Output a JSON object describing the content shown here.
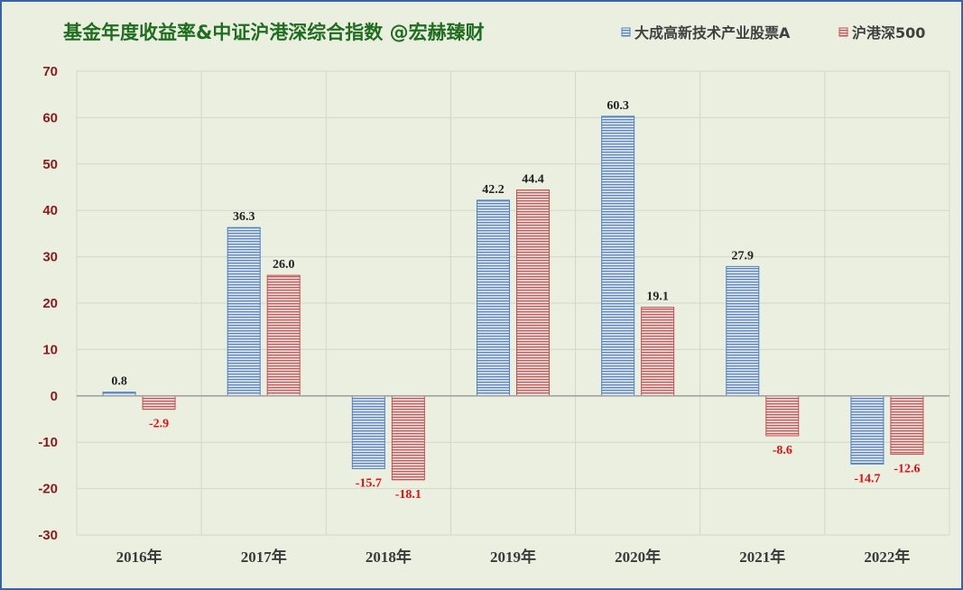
{
  "chart_data": {
    "type": "bar",
    "title": "基金年度收益率&中证沪港深综合指数 @宏赫臻财",
    "categories": [
      "2016年",
      "2017年",
      "2018年",
      "2019年",
      "2020年",
      "2021年",
      "2022年"
    ],
    "series": [
      {
        "name": "大成高新技术产业股票A",
        "values": [
          0.8,
          36.3,
          -15.7,
          42.2,
          60.3,
          27.9,
          -14.7
        ],
        "color": "#4f81bd"
      },
      {
        "name": "沪港深500",
        "values": [
          -2.9,
          26.0,
          -18.1,
          44.4,
          19.1,
          -8.6,
          -12.6
        ],
        "color": "#c0504d"
      }
    ],
    "ylim": [
      -30,
      70
    ],
    "yticks": [
      70,
      60,
      50,
      40,
      30,
      20,
      10,
      0,
      -10,
      -20,
      -30
    ],
    "grid": true,
    "legend_position": "top-right",
    "data_labels": true
  },
  "colors": {
    "background": "#eaefe0",
    "border": "#3a62a8",
    "title": "#1f6e1f",
    "grid": "#d2d7ca",
    "zero_line": "#a3a3a3",
    "ytick": "#8b1a1a",
    "xtick": "#3a3a3a",
    "label_positive": "#222222",
    "label_negative": "#e01010"
  }
}
